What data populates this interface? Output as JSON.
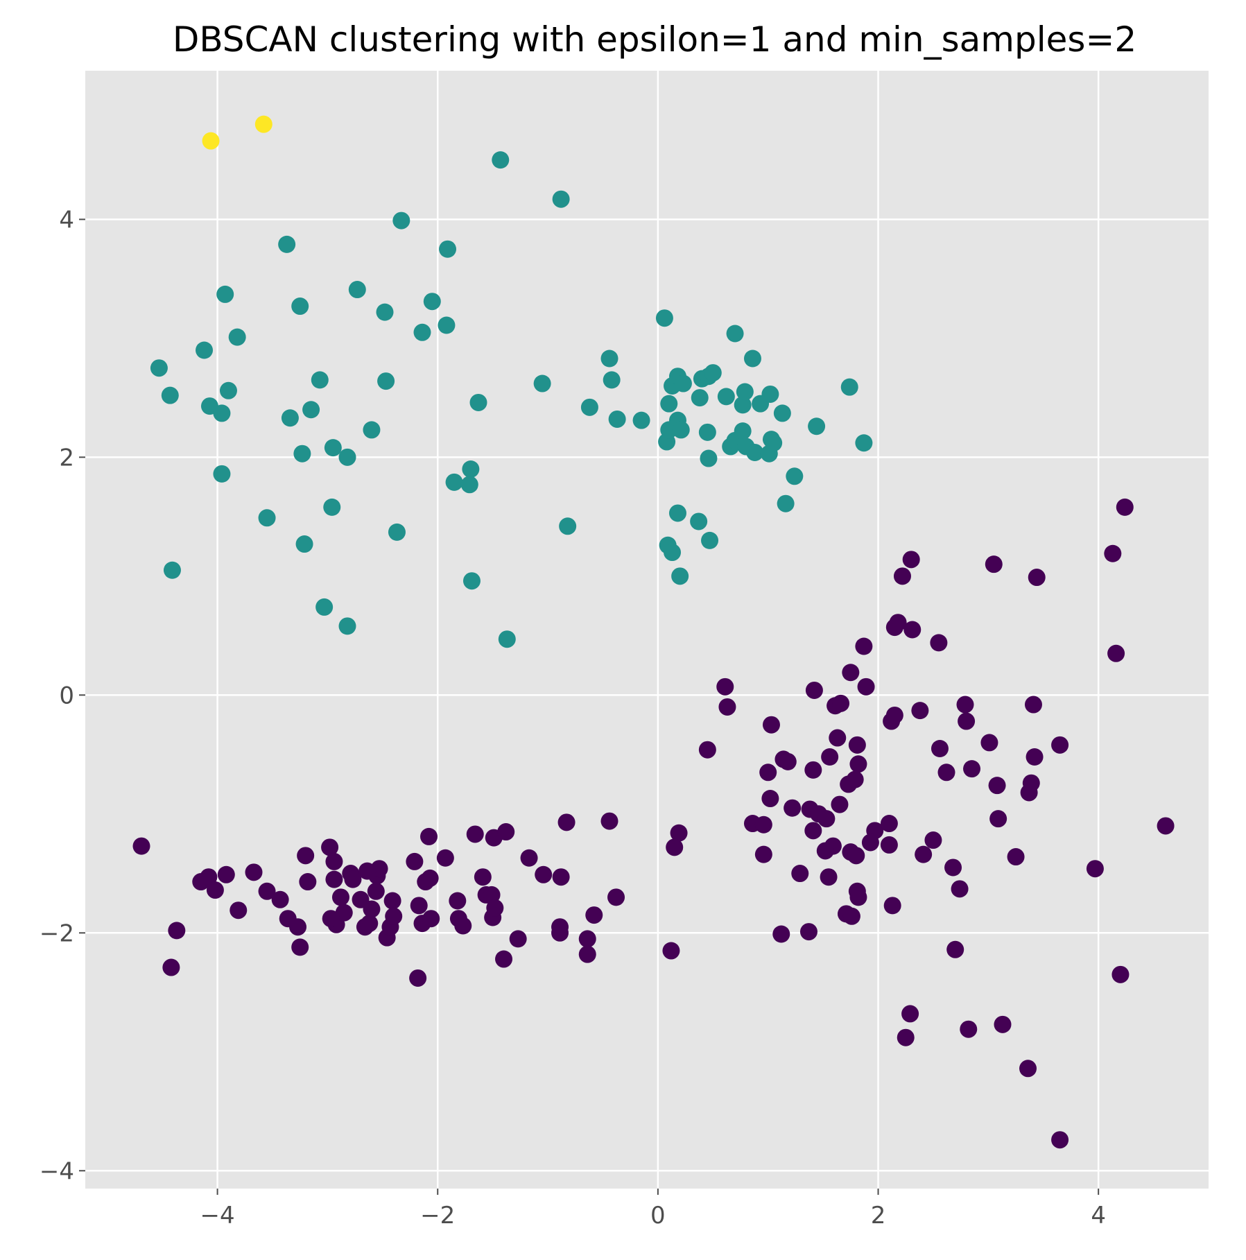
{
  "chart_data": {
    "type": "scatter",
    "title": "DBSCAN clustering with epsilon=1 and min_samples=2",
    "xlabel": "",
    "ylabel": "",
    "xlim": [
      -5.2,
      5.0
    ],
    "ylim": [
      -4.15,
      5.25
    ],
    "xticks": [
      -4,
      -2,
      0,
      2,
      4
    ],
    "yticks": [
      -4,
      -2,
      0,
      2,
      4
    ],
    "xtick_labels": [
      "−4",
      "−2",
      "0",
      "2",
      "4"
    ],
    "ytick_labels": [
      "−4",
      "−2",
      "0",
      "2",
      "4"
    ],
    "grid": true,
    "background": "#e5e5e5",
    "colormap": "viridis",
    "legend": "none",
    "series": [
      {
        "color": "#fde725",
        "points": [
          [
            -4.06,
            4.66
          ],
          [
            -3.58,
            4.8
          ]
        ]
      },
      {
        "color": "#21918c",
        "points": [
          [
            -1.43,
            4.5
          ],
          [
            -0.88,
            4.17
          ],
          [
            -2.33,
            3.99
          ],
          [
            -3.37,
            3.79
          ],
          [
            -1.91,
            3.75
          ],
          [
            -3.93,
            3.37
          ],
          [
            -2.73,
            3.41
          ],
          [
            -3.25,
            3.27
          ],
          [
            -2.05,
            3.31
          ],
          [
            -2.48,
            3.22
          ],
          [
            -2.14,
            3.05
          ],
          [
            -1.92,
            3.11
          ],
          [
            -3.82,
            3.01
          ],
          [
            -4.12,
            2.9
          ],
          [
            -4.53,
            2.75
          ],
          [
            -4.43,
            2.52
          ],
          [
            -3.07,
            2.65
          ],
          [
            -2.47,
            2.64
          ],
          [
            -4.07,
            2.43
          ],
          [
            -3.96,
            2.37
          ],
          [
            -3.9,
            2.56
          ],
          [
            -3.34,
            2.33
          ],
          [
            -3.15,
            2.4
          ],
          [
            -2.6,
            2.23
          ],
          [
            -1.63,
            2.46
          ],
          [
            -3.23,
            2.03
          ],
          [
            -2.95,
            2.08
          ],
          [
            -2.82,
            2.0
          ],
          [
            -3.96,
            1.86
          ],
          [
            -1.7,
            1.9
          ],
          [
            -1.85,
            1.79
          ],
          [
            -1.71,
            1.77
          ],
          [
            -3.55,
            1.49
          ],
          [
            -2.96,
            1.58
          ],
          [
            -2.37,
            1.37
          ],
          [
            -0.82,
            1.42
          ],
          [
            -3.21,
            1.27
          ],
          [
            -4.41,
            1.05
          ],
          [
            -1.69,
            0.96
          ],
          [
            -3.03,
            0.74
          ],
          [
            -2.82,
            0.58
          ],
          [
            -1.37,
            0.47
          ],
          [
            -1.05,
            2.62
          ],
          [
            -0.62,
            2.42
          ],
          [
            -0.44,
            2.83
          ],
          [
            -0.42,
            2.65
          ],
          [
            -0.37,
            2.32
          ],
          [
            -0.15,
            2.31
          ],
          [
            0.06,
            3.17
          ],
          [
            0.7,
            3.04
          ],
          [
            0.86,
            2.83
          ],
          [
            0.13,
            2.6
          ],
          [
            0.18,
            2.68
          ],
          [
            0.23,
            2.62
          ],
          [
            0.38,
            2.5
          ],
          [
            0.4,
            2.66
          ],
          [
            0.46,
            2.68
          ],
          [
            0.5,
            2.71
          ],
          [
            0.1,
            2.45
          ],
          [
            0.62,
            2.51
          ],
          [
            0.77,
            2.44
          ],
          [
            0.79,
            2.55
          ],
          [
            0.93,
            2.45
          ],
          [
            1.02,
            2.53
          ],
          [
            1.13,
            2.37
          ],
          [
            1.74,
            2.59
          ],
          [
            0.08,
            2.13
          ],
          [
            0.1,
            2.23
          ],
          [
            0.18,
            2.31
          ],
          [
            0.21,
            2.23
          ],
          [
            0.45,
            2.21
          ],
          [
            0.66,
            2.09
          ],
          [
            0.7,
            2.14
          ],
          [
            0.77,
            2.22
          ],
          [
            0.8,
            2.09
          ],
          [
            0.88,
            2.04
          ],
          [
            1.01,
            2.03
          ],
          [
            1.03,
            2.15
          ],
          [
            1.05,
            2.12
          ],
          [
            1.44,
            2.26
          ],
          [
            1.87,
            2.12
          ],
          [
            0.46,
            1.99
          ],
          [
            1.24,
            1.84
          ],
          [
            0.18,
            1.53
          ],
          [
            0.37,
            1.46
          ],
          [
            1.16,
            1.61
          ],
          [
            0.47,
            1.3
          ],
          [
            0.09,
            1.26
          ],
          [
            0.13,
            1.2
          ],
          [
            0.2,
            1.0
          ]
        ]
      },
      {
        "color": "#440154",
        "points": [
          [
            4.24,
            1.58
          ],
          [
            4.13,
            1.19
          ],
          [
            3.05,
            1.1
          ],
          [
            3.44,
            0.99
          ],
          [
            2.3,
            1.14
          ],
          [
            2.22,
            1.0
          ],
          [
            2.18,
            0.61
          ],
          [
            2.15,
            0.57
          ],
          [
            2.31,
            0.55
          ],
          [
            2.55,
            0.44
          ],
          [
            1.87,
            0.41
          ],
          [
            4.16,
            0.35
          ],
          [
            1.75,
            0.19
          ],
          [
            1.42,
            0.04
          ],
          [
            1.89,
            0.07
          ],
          [
            0.61,
            0.07
          ],
          [
            0.63,
            -0.1
          ],
          [
            1.61,
            -0.09
          ],
          [
            1.66,
            -0.07
          ],
          [
            2.12,
            -0.22
          ],
          [
            2.15,
            -0.17
          ],
          [
            2.38,
            -0.13
          ],
          [
            2.79,
            -0.08
          ],
          [
            3.41,
            -0.08
          ],
          [
            1.03,
            -0.25
          ],
          [
            2.8,
            -0.22
          ],
          [
            1.63,
            -0.36
          ],
          [
            1.81,
            -0.42
          ],
          [
            3.01,
            -0.4
          ],
          [
            3.65,
            -0.42
          ],
          [
            0.45,
            -0.46
          ],
          [
            1.14,
            -0.54
          ],
          [
            1.18,
            -0.56
          ],
          [
            1.56,
            -0.52
          ],
          [
            2.56,
            -0.45
          ],
          [
            3.42,
            -0.52
          ],
          [
            1.82,
            -0.58
          ],
          [
            1.41,
            -0.63
          ],
          [
            2.85,
            -0.62
          ],
          [
            1.0,
            -0.65
          ],
          [
            2.62,
            -0.65
          ],
          [
            1.73,
            -0.75
          ],
          [
            1.79,
            -0.71
          ],
          [
            3.08,
            -0.76
          ],
          [
            3.39,
            -0.74
          ],
          [
            3.37,
            -0.82
          ],
          [
            1.02,
            -0.87
          ],
          [
            1.65,
            -0.92
          ],
          [
            1.22,
            -0.95
          ],
          [
            1.38,
            -0.96
          ],
          [
            1.46,
            -1.0
          ],
          [
            1.53,
            -1.04
          ],
          [
            1.41,
            -1.14
          ],
          [
            3.09,
            -1.04
          ],
          [
            4.61,
            -1.1
          ],
          [
            0.86,
            -1.08
          ],
          [
            0.96,
            -1.09
          ],
          [
            1.97,
            -1.14
          ],
          [
            2.1,
            -1.08
          ],
          [
            2.1,
            -1.26
          ],
          [
            1.93,
            -1.24
          ],
          [
            1.59,
            -1.27
          ],
          [
            1.52,
            -1.31
          ],
          [
            1.75,
            -1.32
          ],
          [
            1.8,
            -1.35
          ],
          [
            2.5,
            -1.22
          ],
          [
            2.41,
            -1.34
          ],
          [
            0.96,
            -1.34
          ],
          [
            0.19,
            -1.16
          ],
          [
            0.15,
            -1.28
          ],
          [
            3.25,
            -1.36
          ],
          [
            2.68,
            -1.45
          ],
          [
            3.97,
            -1.46
          ],
          [
            1.29,
            -1.5
          ],
          [
            1.55,
            -1.53
          ],
          [
            2.74,
            -1.63
          ],
          [
            1.81,
            -1.65
          ],
          [
            1.82,
            -1.7
          ],
          [
            2.13,
            -1.77
          ],
          [
            1.71,
            -1.84
          ],
          [
            1.76,
            -1.86
          ],
          [
            1.12,
            -2.01
          ],
          [
            1.37,
            -1.99
          ],
          [
            0.12,
            -2.15
          ],
          [
            2.7,
            -2.14
          ],
          [
            4.2,
            -2.35
          ],
          [
            2.29,
            -2.68
          ],
          [
            2.25,
            -2.88
          ],
          [
            2.82,
            -2.81
          ],
          [
            3.13,
            -2.77
          ],
          [
            3.36,
            -3.14
          ],
          [
            3.65,
            -3.74
          ],
          [
            -4.69,
            -1.27
          ],
          [
            -3.92,
            -1.51
          ],
          [
            -4.15,
            -1.57
          ],
          [
            -4.08,
            -1.53
          ],
          [
            -4.02,
            -1.64
          ],
          [
            -3.81,
            -1.81
          ],
          [
            -3.67,
            -1.49
          ],
          [
            -3.55,
            -1.65
          ],
          [
            -3.43,
            -1.72
          ],
          [
            -3.36,
            -1.88
          ],
          [
            -3.27,
            -1.95
          ],
          [
            -3.25,
            -2.12
          ],
          [
            -3.2,
            -1.35
          ],
          [
            -3.18,
            -1.57
          ],
          [
            -2.98,
            -1.28
          ],
          [
            -2.94,
            -1.4
          ],
          [
            -2.94,
            -1.55
          ],
          [
            -2.88,
            -1.7
          ],
          [
            -2.85,
            -1.83
          ],
          [
            -2.92,
            -1.93
          ],
          [
            -2.97,
            -1.88
          ],
          [
            -2.79,
            -1.5
          ],
          [
            -2.77,
            -1.55
          ],
          [
            -2.7,
            -1.72
          ],
          [
            -2.66,
            -1.95
          ],
          [
            -2.62,
            -1.92
          ],
          [
            -2.6,
            -1.8
          ],
          [
            -2.55,
            -1.52
          ],
          [
            -2.53,
            -1.46
          ],
          [
            -2.56,
            -1.65
          ],
          [
            -2.46,
            -2.04
          ],
          [
            -2.43,
            -1.95
          ],
          [
            -2.41,
            -1.73
          ],
          [
            -2.4,
            -1.86
          ],
          [
            -2.64,
            -1.48
          ],
          [
            -2.21,
            -1.4
          ],
          [
            -2.17,
            -1.77
          ],
          [
            -2.14,
            -1.92
          ],
          [
            -2.11,
            -1.57
          ],
          [
            -2.08,
            -1.19
          ],
          [
            -2.07,
            -1.54
          ],
          [
            -2.06,
            -1.88
          ],
          [
            -2.18,
            -2.38
          ],
          [
            -1.93,
            -1.37
          ],
          [
            -1.82,
            -1.73
          ],
          [
            -1.81,
            -1.88
          ],
          [
            -1.77,
            -1.94
          ],
          [
            -1.66,
            -1.17
          ],
          [
            -1.59,
            -1.53
          ],
          [
            -1.56,
            -1.68
          ],
          [
            -1.51,
            -1.68
          ],
          [
            -1.49,
            -1.2
          ],
          [
            -1.5,
            -1.87
          ],
          [
            -1.48,
            -1.79
          ],
          [
            -1.38,
            -1.15
          ],
          [
            -1.4,
            -2.22
          ],
          [
            -1.27,
            -2.05
          ],
          [
            -1.17,
            -1.37
          ],
          [
            -1.04,
            -1.51
          ],
          [
            -0.88,
            -1.53
          ],
          [
            -0.89,
            -1.95
          ],
          [
            -0.89,
            -2.0
          ],
          [
            -0.83,
            -1.07
          ],
          [
            -0.64,
            -2.05
          ],
          [
            -0.64,
            -2.18
          ],
          [
            -0.58,
            -1.85
          ],
          [
            -0.44,
            -1.06
          ],
          [
            -0.38,
            -1.7
          ],
          [
            -4.37,
            -1.98
          ],
          [
            -4.42,
            -2.29
          ]
        ]
      }
    ]
  }
}
